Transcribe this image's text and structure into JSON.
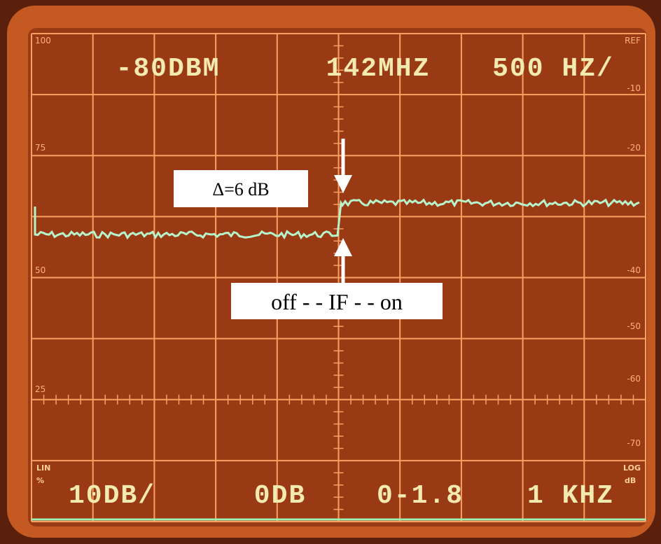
{
  "screen": {
    "top_readout": [
      "-80DBM",
      "142MHZ",
      "500 HZ/"
    ],
    "bottom_readout": [
      "10DB/",
      "0DB",
      "0-1.8",
      "1 KHZ"
    ],
    "left_scale": [
      "100",
      "75",
      "50",
      "25"
    ],
    "right_scale": [
      "REF",
      "-10",
      "-20",
      "-40",
      "-50",
      "-60",
      "-70"
    ],
    "lin_label": "LIN",
    "lin_unit": "%",
    "log_label": "LOG",
    "log_unit": "dB"
  },
  "annotations": {
    "delta": "Δ=6 dB",
    "if_switch": "off - - IF - - on"
  }
}
